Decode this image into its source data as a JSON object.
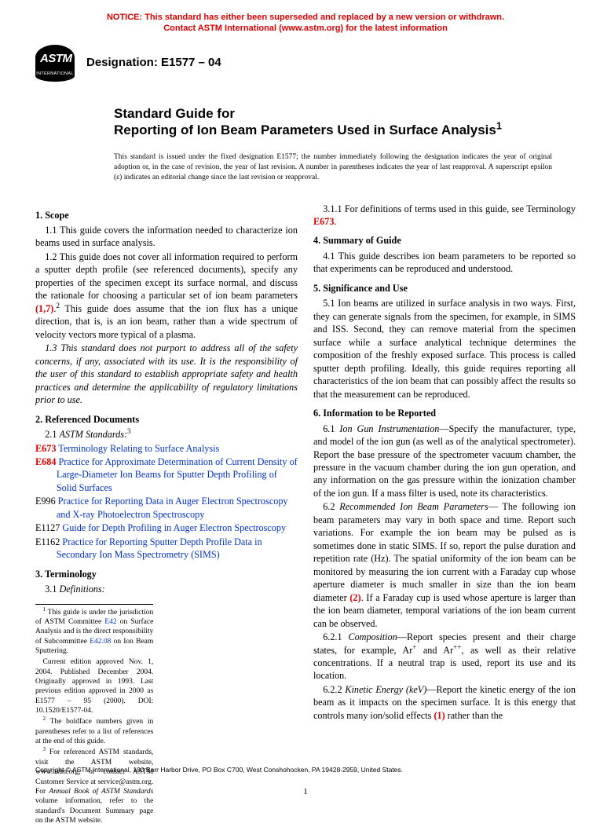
{
  "notice_line1": "NOTICE: This standard has either been superseded and replaced by a new version or withdrawn.",
  "notice_line2": "Contact ASTM International (www.astm.org) for the latest information",
  "logo_top": "ASTM",
  "logo_bot": "INTERNATIONAL",
  "designation": "Designation: E1577 – 04",
  "title_pre": "Standard Guide for",
  "title_main_a": "Reporting of Ion Beam Parameters Used in Surface Analysis",
  "title_sup": "1",
  "issuance": "This standard is issued under the fixed designation E1577; the number immediately following the designation indicates the year of original adoption or, in the case of revision, the year of last revision. A number in parentheses indicates the year of last reapproval. A superscript epsilon (ε) indicates an editorial change since the last revision or reapproval.",
  "s1_head": "1. Scope",
  "s1_1": "1.1 This guide covers the information needed to characterize ion beams used in surface analysis.",
  "s1_2a": "1.2 This guide does not cover all information required to perform a sputter depth profile (see referenced documents), specify any properties of the specimen except its surface normal, and discuss the rationale for choosing a particular set of ion beam parameters ",
  "s1_2_ref": "(1,7)",
  "s1_2b": ".",
  "s1_2c": " This guide does assume that the ion flux has a unique direction, that is, is an ion beam, rather than a wide spectrum of velocity vectors more typical of a plasma.",
  "s1_3": "1.3 This standard does not purport to address all of the safety concerns, if any, associated with its use. It is the responsibility of the user of this standard to establish appropriate safety and health practices and determine the applicability of regulatory limitations prior to use.",
  "s2_head": "2. Referenced Documents",
  "s2_1": "2.1 ",
  "s2_1b": "ASTM Standards:",
  "ref1_code": "E673",
  "ref1_txt": "Terminology Relating to Surface Analysis",
  "ref2_code": "E684",
  "ref2_txt": "Practice for Approximate Determination of Current Density of Large-Diameter Ion Beams for Sputter Depth Profiling of Solid Surfaces",
  "ref3_code": "E996",
  "ref3_txt": "Practice for Reporting Data in Auger Electron Spectroscopy and X-ray Photoelectron Spectroscopy",
  "ref4_code": "E1127",
  "ref4_txt": "Guide for Depth Profiling in Auger Electron Spectroscopy",
  "ref5_code": "E1162",
  "ref5_txt": "Practice for Reporting Sputter Depth Profile Data in Secondary Ion Mass Spectrometry (SIMS)",
  "s3_head": "3. Terminology",
  "s3_1": "3.1 ",
  "s3_1b": "Definitions:",
  "fn1a": " This guide is under the jurisdiction of ASTM Committee ",
  "fn1_l1": "E42",
  "fn1b": " on Surface Analysis and is the direct responsibility of Subcommittee ",
  "fn1_l2": "E42.08",
  "fn1c": " on Ion Beam Sputtering.",
  "fn1d": "Current edition approved Nov. 1, 2004. Published December 2004. Originally approved in 1993. Last previous edition approved in 2000 as E1577 – 95 (2000). DOI: 10.1520/E1577-04.",
  "fn2": " The boldface numbers given in parentheses refer to a list of references at the end of this guide.",
  "fn3a": " For referenced ASTM standards, visit the ASTM website, www.astm.org, or contact ASTM Customer Service at service@astm.org. For ",
  "fn3b": "Annual Book of ASTM Standards",
  "fn3c": " volume information, refer to the standard's Document Summary page on the ASTM website.",
  "s3_1_1a": "3.1.1 For definitions of terms used in this guide, see Terminology ",
  "s3_1_1_ref": "E673",
  "s3_1_1b": ".",
  "s4_head": "4. Summary of Guide",
  "s4_1": "4.1 This guide describes ion beam parameters to be reported so that experiments can be reproduced and understood.",
  "s5_head": "5. Significance and Use",
  "s5_1": "5.1 Ion beams are utilized in surface analysis in two ways. First, they can generate signals from the specimen, for example, in SIMS and ISS. Second, they can remove material from the specimen surface while a surface analytical technique determines the composition of the freshly exposed surface. This process is called sputter depth profiling. Ideally, this guide requires reporting all characteristics of the ion beam that can possibly affect the results so that the measurement can be reproduced.",
  "s6_head": "6. Information to be Reported",
  "s6_1a": "6.1 ",
  "s6_1h": "Ion Gun Instrumentation",
  "s6_1b": "—Specify the manufacturer, type, and model of the ion gun (as well as of the analytical spectrometer). Report the base pressure of the spectrometer vacuum chamber, the pressure in the vacuum chamber during the ion gun operation, and any information on the gas pressure within the ionization chamber of the ion gun. If a mass filter is used, note its characteristics.",
  "s6_2a": "6.2 ",
  "s6_2h": "Recommended Ion Beam Parameters",
  "s6_2b": "— The following ion beam parameters may vary in both space and time. Report such variations. For example the ion beam may be pulsed as is sometimes done in static SIMS. If so, report the pulse duration and repetition rate (Hz). The spatial uniformity of the ion beam can be monitored by measuring the ion current with a Faraday cup whose aperture diameter is much smaller in size than the ion beam diameter ",
  "s6_2_ref": "(2)",
  "s6_2c": ". If a Faraday cup is used whose aperture is larger than the ion beam diameter, temporal variations of the ion beam current can be observed.",
  "s6_2_1a": "6.2.1 ",
  "s6_2_1h": "Composition",
  "s6_2_1b": "—Report species present and their charge states, for example, Ar",
  "s6_2_1c": " and Ar",
  "s6_2_1d": ", as well as their relative concentrations. If a neutral trap is used, report its use and its location.",
  "s6_2_2a": "6.2.2 ",
  "s6_2_2h": "Kinetic Energy (keV)",
  "s6_2_2b": "—Report the kinetic energy of the ion beam as it impacts on the specimen surface. It is this energy that controls many ion/solid effects ",
  "s6_2_2_ref": "(1)",
  "s6_2_2c": " rather than the",
  "copyright": "Copyright © ASTM International, 100 Barr Harbor Drive, PO Box C700, West Conshohocken, PA 19428-2959, United States.",
  "pagenum": "1"
}
